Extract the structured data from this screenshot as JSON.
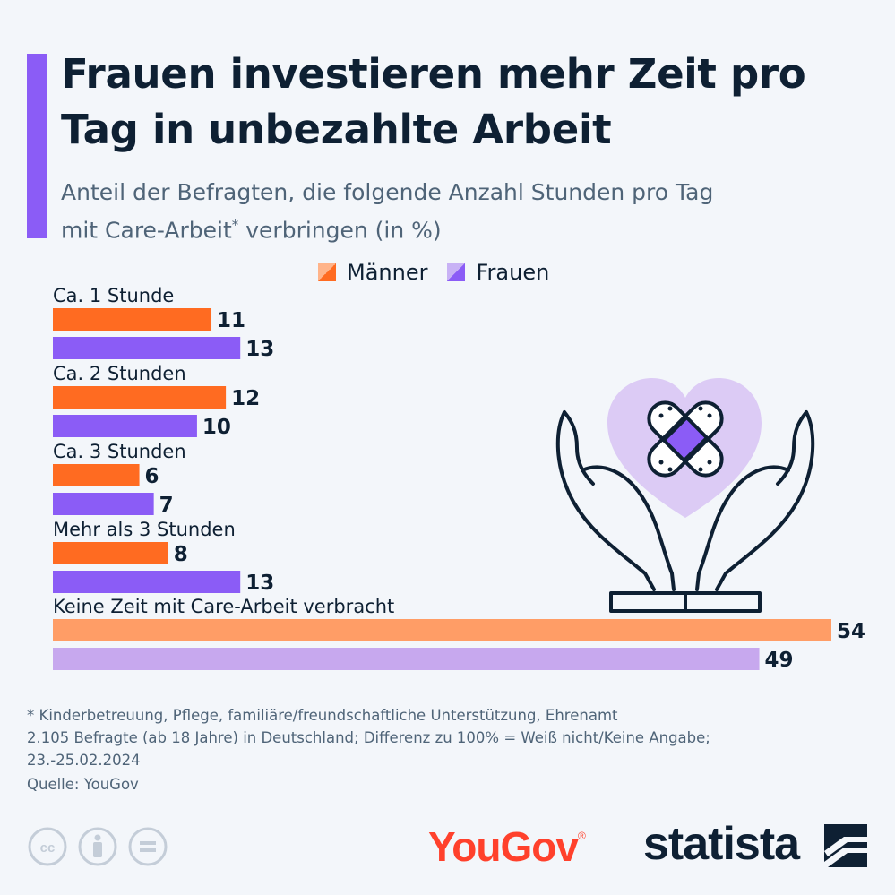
{
  "header": {
    "title": "Frauen investieren mehr Zeit pro Tag in unbezahlte Arbeit",
    "subtitle_part1": "Anteil der Befragten, die folgende Anzahl Stunden pro Tag",
    "subtitle_part2a": "mit Care-Arbeit",
    "subtitle_sup": "*",
    "subtitle_part2b": " verbringen (in %)"
  },
  "legend": {
    "men": "Männer",
    "women": "Frauen"
  },
  "colors": {
    "men": "#ff6b21",
    "women": "#8b5cf6",
    "men_light": "#ff9d66",
    "women_light": "#c7a8ee",
    "accent": "#8b5cf6",
    "text": "#0e2033"
  },
  "chart_data": {
    "type": "bar",
    "orientation": "horizontal",
    "categories": [
      "Ca. 1 Stunde",
      "Ca. 2 Stunden",
      "Ca. 3 Stunden",
      "Mehr als 3 Stunden",
      "Keine Zeit mit Care-Arbeit verbracht"
    ],
    "series": [
      {
        "name": "Männer",
        "values": [
          11,
          12,
          6,
          8,
          54
        ]
      },
      {
        "name": "Frauen",
        "values": [
          13,
          10,
          7,
          13,
          49
        ]
      }
    ],
    "xlim": [
      0,
      54
    ],
    "grid": false,
    "legend_position": "top"
  },
  "footnote": {
    "line1": "* Kinderbetreuung, Pflege, familiäre/freundschaftliche Unterstützung, Ehrenamt",
    "line2": "2.105 Befragte (ab 18 Jahre) in Deutschland; Differenz zu 100% = Weiß nicht/Keine Angabe;",
    "line3": "23.-25.02.2024"
  },
  "source": "Quelle: YouGov",
  "branding": {
    "yougov": "YouGov",
    "yougov_reg": "®",
    "statista": "statista"
  },
  "icons": [
    "cc-icon",
    "by-icon",
    "nd-icon",
    "heart-bandage-hands-icon",
    "statista-logo-icon"
  ]
}
